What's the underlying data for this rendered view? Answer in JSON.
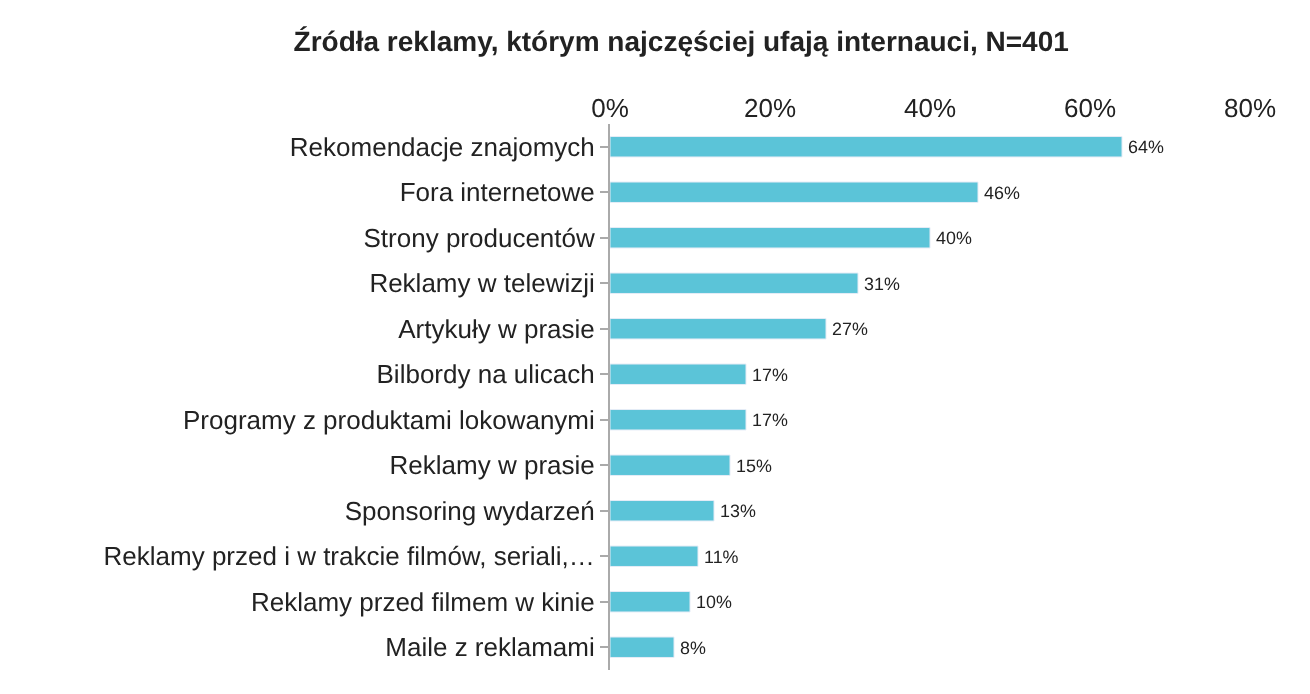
{
  "chart_data": {
    "type": "bar",
    "orientation": "horizontal",
    "title": "Źródła reklamy, którym najczęściej ufają internauci, N=401",
    "categories": [
      "Rekomendacje znajomych",
      "Fora internetowe",
      "Strony producentów",
      "Reklamy w telewizji",
      "Artykuły w prasie",
      "Bilbordy na ulicach",
      "Programy z produktami lokowanymi",
      "Reklamy w prasie",
      "Sponsoring wydarzeń",
      "Reklamy przed i w trakcie filmów, seriali,…",
      "Reklamy przed filmem w kinie",
      "Maile z reklamami"
    ],
    "values": [
      64,
      46,
      40,
      31,
      27,
      17,
      17,
      15,
      13,
      11,
      10,
      8
    ],
    "value_labels": [
      "64%",
      "46%",
      "40%",
      "31%",
      "27%",
      "17%",
      "17%",
      "15%",
      "13%",
      "11%",
      "10%",
      "8%"
    ],
    "color": "#5bc4d8",
    "xlim": [
      0,
      80
    ],
    "xticks": [
      {
        "value": 0,
        "label": "0%"
      },
      {
        "value": 20,
        "label": "20%"
      },
      {
        "value": 40,
        "label": "40%"
      },
      {
        "value": 60,
        "label": "60%"
      },
      {
        "value": 80,
        "label": "80%"
      }
    ]
  }
}
